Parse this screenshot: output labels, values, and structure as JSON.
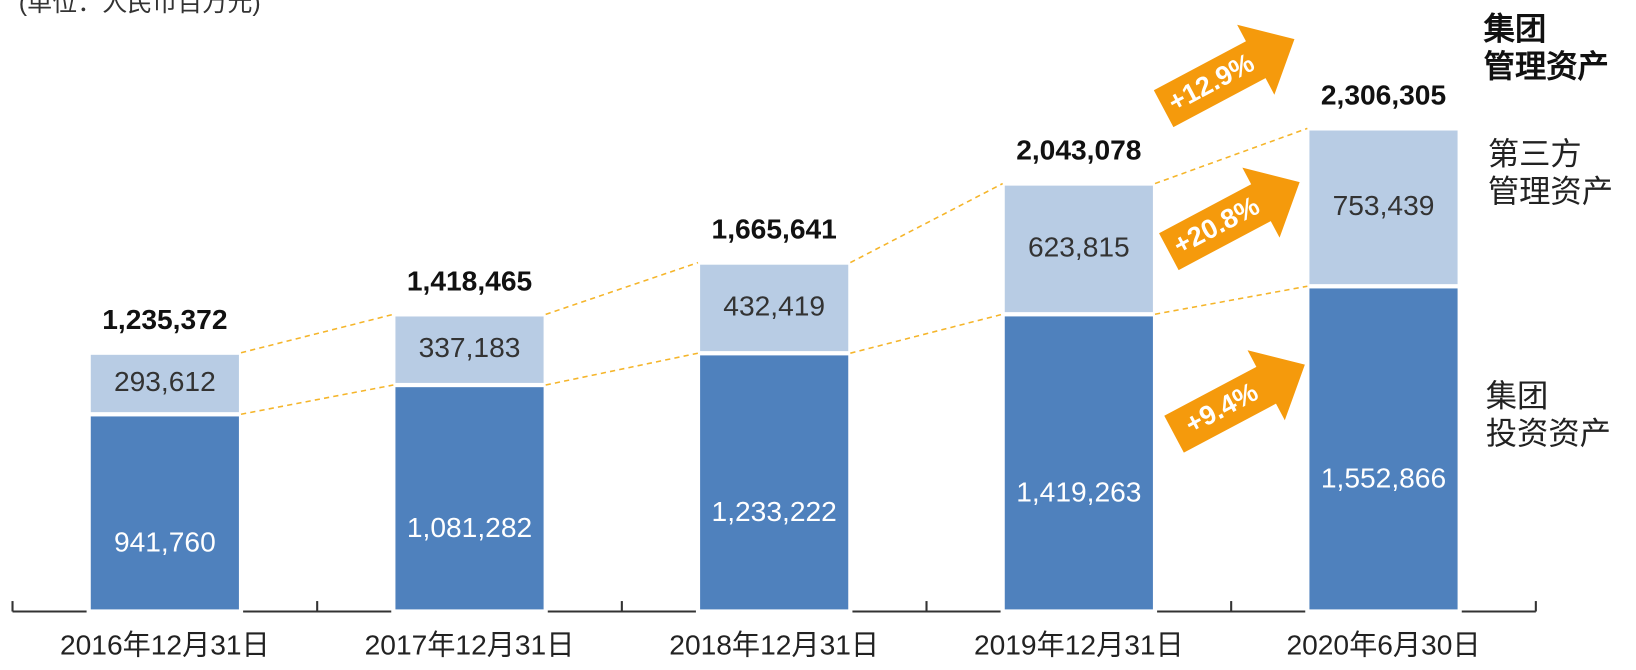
{
  "chart_data": {
    "type": "stacked_bar",
    "subtitle": "(单位：人民币百万元)",
    "categories": [
      "2016年12月31日",
      "2017年12月31日",
      "2018年12月31日",
      "2019年12月31日",
      "2020年6月30日"
    ],
    "series": [
      {
        "name": "集团\n投资资产",
        "color": "#4f81bd",
        "values": [
          941760,
          1081282,
          1233222,
          1419263,
          1552866
        ],
        "value_labels": [
          "941,760",
          "1,081,282",
          "1,233,222",
          "1,419,263",
          "1,552,866"
        ]
      },
      {
        "name": "第三方\n管理资产",
        "color": "#b8cce4",
        "values": [
          293612,
          337183,
          432419,
          623815,
          753439
        ],
        "value_labels": [
          "293,612",
          "337,183",
          "432,419",
          "623,815",
          "753,439"
        ]
      }
    ],
    "totals": {
      "name": "集团\n管理资产",
      "values": [
        1235372,
        1418465,
        1665641,
        2043078,
        2306305
      ],
      "value_labels": [
        "1,235,372",
        "1,418,465",
        "1,665,641",
        "2,043,078",
        "2,306,305"
      ]
    },
    "annotations": [
      "+12.9%",
      "+20.8%",
      "+9.4%"
    ],
    "connector_color": "#f5b52a",
    "arrow_color": "#f59a0c"
  }
}
